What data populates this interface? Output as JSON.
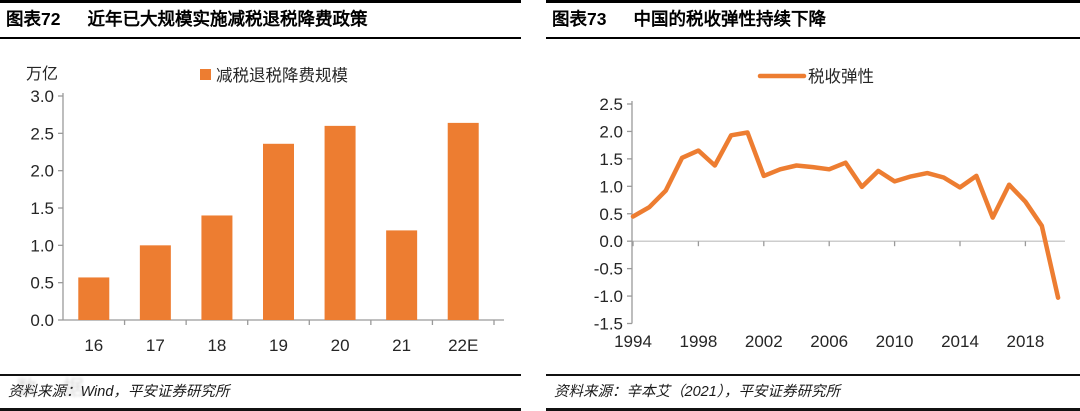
{
  "panels": {
    "left": {
      "fig_label": "图表72",
      "title": "近年已大规模实施减税退税降费政策",
      "source": "资料来源：Wind，平安证券研究所",
      "watermark": "数据"
    },
    "right": {
      "fig_label": "图表73",
      "title": "中国的税收弹性持续下降",
      "source": "资料来源：辛本艾（2021），平安证券研究所"
    }
  },
  "colors": {
    "accent": "#ED7D31",
    "axis": "#9A9A9A",
    "gridline": "#CDCDCD",
    "tick_text": "#262626"
  },
  "chart_data": [
    {
      "type": "bar",
      "title": "近年已大规模实施减税退税降费政策",
      "series_name": "减税退税降费规模",
      "ylabel": "万亿",
      "categories": [
        "16",
        "17",
        "18",
        "19",
        "20",
        "21",
        "22E"
      ],
      "values": [
        0.57,
        1.0,
        1.4,
        2.36,
        2.6,
        1.2,
        2.64
      ],
      "ylim": [
        0.0,
        3.0
      ],
      "ytick_step": 0.5,
      "grid": false,
      "legend_position": "top",
      "bar_color": "#ED7D31"
    },
    {
      "type": "line",
      "title": "中国的税收弹性持续下降",
      "series_name": "税收弹性",
      "x": [
        1994,
        1995,
        1996,
        1997,
        1998,
        1999,
        2000,
        2001,
        2002,
        2003,
        2004,
        2005,
        2006,
        2007,
        2008,
        2009,
        2010,
        2011,
        2012,
        2013,
        2014,
        2015,
        2016,
        2017,
        2018,
        2019,
        2020
      ],
      "values": [
        0.45,
        0.62,
        0.92,
        1.52,
        1.65,
        1.38,
        1.93,
        1.98,
        1.19,
        1.31,
        1.38,
        1.35,
        1.31,
        1.43,
        0.99,
        1.28,
        1.09,
        1.18,
        1.24,
        1.16,
        0.98,
        1.19,
        0.43,
        1.03,
        0.72,
        0.28,
        -1.03
      ],
      "ylim": [
        -1.5,
        2.5
      ],
      "ytick_step": 0.5,
      "xticks": [
        1994,
        1998,
        2002,
        2006,
        2010,
        2014,
        2018
      ],
      "grid": false,
      "zero_line": true,
      "legend_position": "top",
      "line_color": "#ED7D31"
    }
  ]
}
